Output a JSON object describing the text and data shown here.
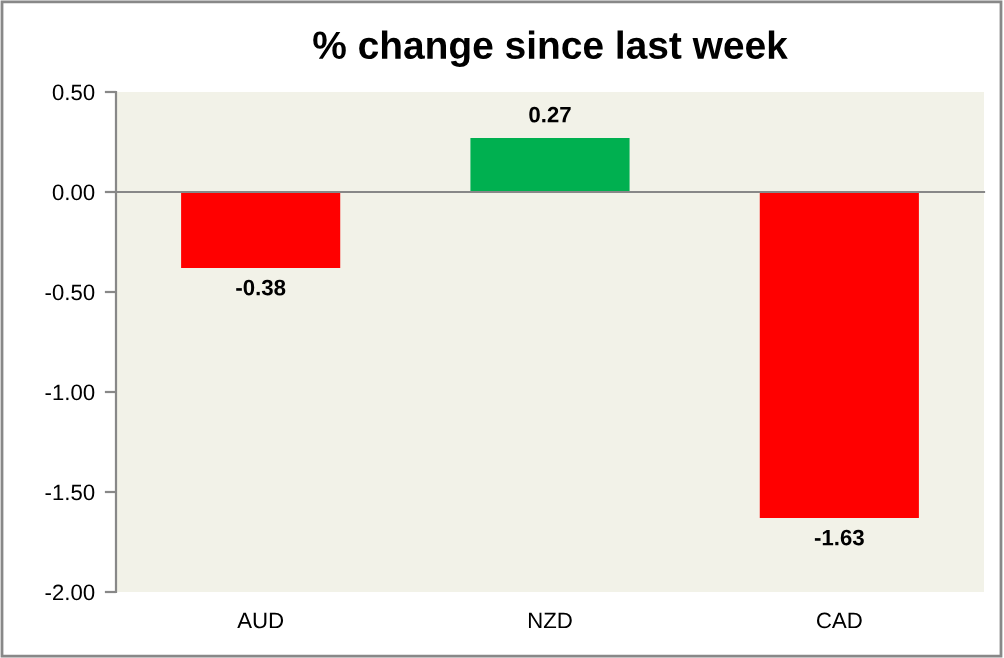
{
  "chart_data": {
    "type": "bar",
    "title": "% change since last week",
    "categories": [
      "AUD",
      "NZD",
      "CAD"
    ],
    "values": [
      -0.38,
      0.27,
      -1.63
    ],
    "colors": [
      "#ff0000",
      "#00b050",
      "#ff0000"
    ],
    "ylim": [
      -2.0,
      0.5
    ],
    "yticks": [
      {
        "value": -2.0,
        "label": "-2.00"
      },
      {
        "value": -1.5,
        "label": "-1.50"
      },
      {
        "value": -1.0,
        "label": "-1.00"
      },
      {
        "value": -0.5,
        "label": "-0.50"
      },
      {
        "value": 0,
        "label": "0.00"
      },
      {
        "value": 0.5,
        "label": "0.50"
      }
    ],
    "data_labels": true,
    "legend": false
  }
}
